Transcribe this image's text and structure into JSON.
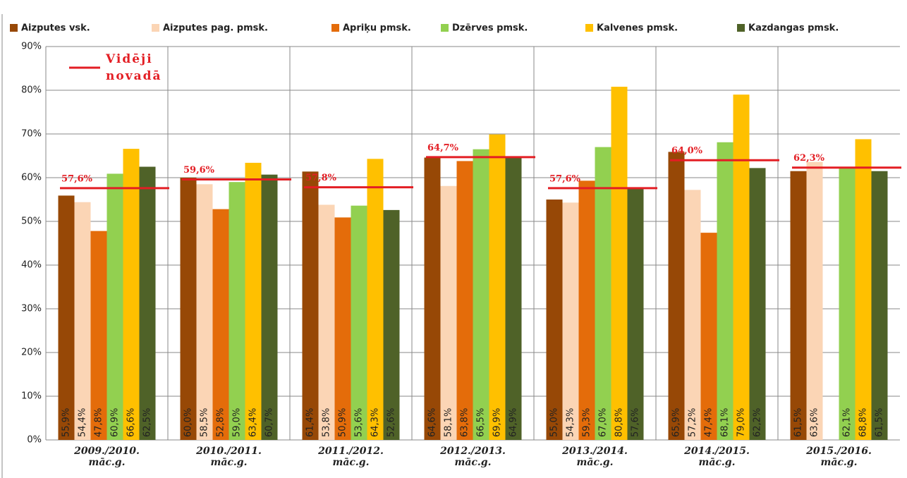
{
  "chart_data": {
    "type": "bar",
    "categories": [
      "2009./2010. māc.g.",
      "2010./2011. māc.g.",
      "2011./2012. māc.g.",
      "2012./2013. māc.g.",
      "2013./2014. māc.g.",
      "2014./2015. māc.g.",
      "2015./2016. māc.g."
    ],
    "series": [
      {
        "name": "Aizputes vsk.",
        "color": "#974806",
        "values": [
          55.9,
          60.0,
          61.4,
          64.6,
          55.0,
          65.9,
          61.5
        ],
        "value_labels": [
          "55,9%",
          "60,0%",
          "61,4%",
          "64,6%",
          "55,0%",
          "65,9%",
          "61,5%"
        ]
      },
      {
        "name": "Aizputes pag. pmsk.",
        "color": "#FBD5B5",
        "values": [
          54.4,
          58.5,
          53.8,
          58.1,
          54.3,
          57.2,
          63.6
        ],
        "value_labels": [
          "54,4%",
          "58,5%",
          "53,8%",
          "58,1%",
          "54,3%",
          "57,2%",
          "63,6%"
        ]
      },
      {
        "name": "Apriķu pmsk.",
        "color": "#E46C0A",
        "values": [
          47.8,
          52.8,
          50.9,
          63.8,
          59.3,
          47.4,
          null
        ],
        "value_labels": [
          "47,8%",
          "52,8%",
          "50,9%",
          "63,8%",
          "59,3%",
          "47,4%",
          null
        ]
      },
      {
        "name": "Dzērves pmsk.",
        "color": "#92D050",
        "values": [
          60.9,
          59.0,
          53.6,
          66.5,
          67.0,
          68.1,
          62.1
        ],
        "value_labels": [
          "60,9%",
          "59,0%",
          "53,6%",
          "66,5%",
          "67,0%",
          "68,1%",
          "62,1%"
        ]
      },
      {
        "name": "Kalvenes pmsk.",
        "color": "#FFC000",
        "values": [
          66.6,
          63.4,
          64.3,
          69.9,
          80.8,
          79.0,
          68.8
        ],
        "value_labels": [
          "66,6%",
          "63,4%",
          "64,3%",
          "69,9%",
          "80,8%",
          "79,0%",
          "68,8%"
        ]
      },
      {
        "name": "Kazdangas pmsk.",
        "color": "#4F6228",
        "values": [
          62.5,
          60.7,
          52.6,
          64.9,
          57.6,
          62.2,
          61.5
        ],
        "value_labels": [
          "62,5%",
          "60,7%",
          "52,6%",
          "64,9%",
          "57,6%",
          "62,2%",
          "61,5%"
        ]
      }
    ],
    "average": {
      "name": "Vidēji novadā",
      "color": "#E31E24",
      "values": [
        57.6,
        59.6,
        57.8,
        64.7,
        57.6,
        64.0,
        62.3
      ],
      "value_labels": [
        "57,6%",
        "59,6%",
        "57,8%",
        "64,7%",
        "57,6%",
        "64,0%",
        "62,3%"
      ]
    },
    "ylim": [
      0,
      90
    ],
    "yticks": [
      {
        "value": 0,
        "label": "0%"
      },
      {
        "value": 10,
        "label": "10%"
      },
      {
        "value": 20,
        "label": "20%"
      },
      {
        "value": 30,
        "label": "30%"
      },
      {
        "value": 40,
        "label": "40%"
      },
      {
        "value": 50,
        "label": "50%"
      },
      {
        "value": 60,
        "label": "60%"
      },
      {
        "value": 70,
        "label": "70%"
      },
      {
        "value": 80,
        "label": "80%"
      },
      {
        "value": 90,
        "label": "90%"
      }
    ],
    "grid": true
  }
}
